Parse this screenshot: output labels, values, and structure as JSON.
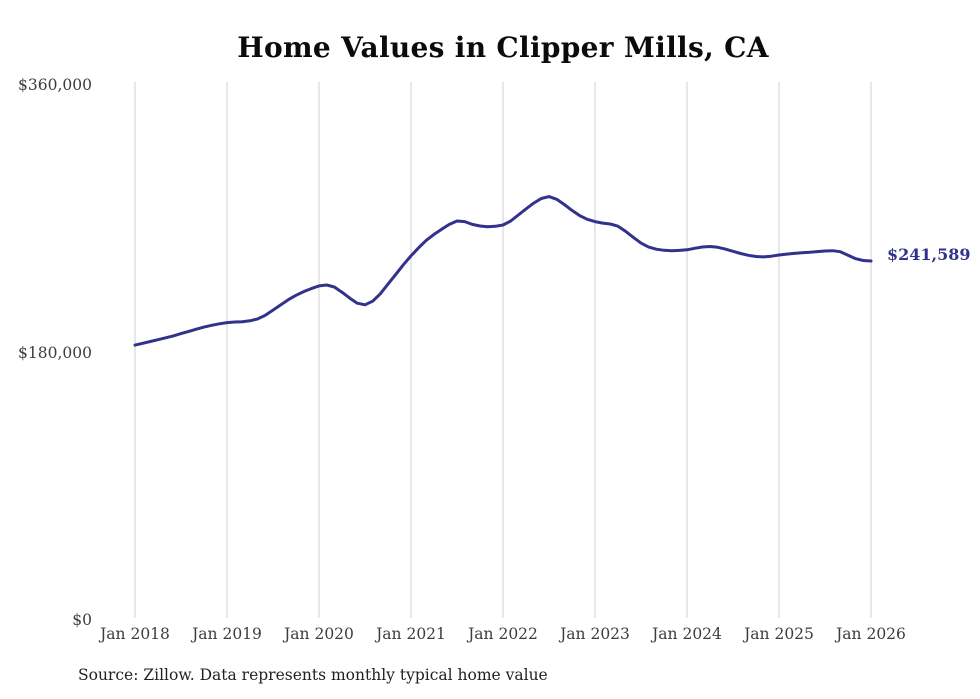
{
  "page": {
    "background": "#ffffff"
  },
  "chart": {
    "title": "Home Values in Clipper Mills, CA",
    "end_label": "$241,589",
    "source_note": "Source: Zillow. Data represents monthly typical home value",
    "line_color": "#32328c",
    "grid_color": "#cfcfcf",
    "title_color": "#0b0b0b",
    "axis_label_color": "#3d3d3d"
  },
  "chart_data": {
    "type": "line",
    "title": "Home Values in Clipper Mills, CA",
    "ylabel": "",
    "xlabel": "",
    "ylim": [
      0,
      360000
    ],
    "grid": "vertical-only",
    "legend": "none",
    "y_tick_values": [
      360000,
      180000,
      0
    ],
    "y_tick_labels": [
      "$360,000",
      "$180,000",
      "$0"
    ],
    "x_tick_labels": [
      "Jan 2018",
      "Jan 2019",
      "Jan 2020",
      "Jan 2021",
      "Jan 2022",
      "Jan 2023",
      "Jan 2024",
      "Jan 2025",
      "Jan 2026"
    ],
    "frequency": "monthly",
    "last_value": 241589,
    "annotation": "$241,589",
    "x": [
      "2018-01",
      "2018-02",
      "2018-03",
      "2018-04",
      "2018-05",
      "2018-06",
      "2018-07",
      "2018-08",
      "2018-09",
      "2018-10",
      "2018-11",
      "2018-12",
      "2019-01",
      "2019-02",
      "2019-03",
      "2019-04",
      "2019-05",
      "2019-06",
      "2019-07",
      "2019-08",
      "2019-09",
      "2019-10",
      "2019-11",
      "2019-12",
      "2020-01",
      "2020-02",
      "2020-03",
      "2020-04",
      "2020-05",
      "2020-06",
      "2020-07",
      "2020-08",
      "2020-09",
      "2020-10",
      "2020-11",
      "2020-12",
      "2021-01",
      "2021-02",
      "2021-03",
      "2021-04",
      "2021-05",
      "2021-06",
      "2021-07",
      "2021-08",
      "2021-09",
      "2021-10",
      "2021-11",
      "2021-12",
      "2022-01",
      "2022-02",
      "2022-03",
      "2022-04",
      "2022-05",
      "2022-06",
      "2022-07",
      "2022-08",
      "2022-09",
      "2022-10",
      "2022-11",
      "2022-12",
      "2023-01",
      "2023-02",
      "2023-03",
      "2023-04",
      "2023-05",
      "2023-06",
      "2023-07",
      "2023-08",
      "2023-09",
      "2023-10",
      "2023-11",
      "2023-12",
      "2024-01",
      "2024-02",
      "2024-03",
      "2024-04",
      "2024-05",
      "2024-06",
      "2024-07",
      "2024-08",
      "2024-09",
      "2024-10",
      "2024-11",
      "2024-12",
      "2025-01",
      "2025-02",
      "2025-03",
      "2025-04",
      "2025-05",
      "2025-06",
      "2025-07",
      "2025-08",
      "2025-09",
      "2025-10",
      "2025-11",
      "2025-12",
      "2026-01"
    ],
    "values": [
      185000,
      186200,
      187400,
      188600,
      189900,
      191200,
      192700,
      194200,
      195700,
      197100,
      198300,
      199300,
      200100,
      200500,
      200700,
      201300,
      202600,
      205000,
      208500,
      212000,
      215500,
      218500,
      221000,
      223000,
      224800,
      225400,
      224100,
      220600,
      216600,
      213200,
      212100,
      214500,
      219500,
      226000,
      232500,
      239000,
      245000,
      250500,
      255500,
      259500,
      263000,
      266200,
      268500,
      268100,
      266200,
      265100,
      264600,
      264900,
      265800,
      268500,
      272500,
      276600,
      280500,
      283600,
      284900,
      283100,
      279600,
      275600,
      272100,
      269600,
      268100,
      267100,
      266500,
      265000,
      261500,
      257500,
      253600,
      250900,
      249500,
      248800,
      248500,
      248700,
      249100,
      250100,
      251000,
      251300,
      250800,
      249600,
      248100,
      246600,
      245400,
      244600,
      244300,
      244800,
      245600,
      246200,
      246700,
      247100,
      247400,
      247900,
      248300,
      248500,
      247800,
      245500,
      243100,
      241900,
      241589
    ]
  }
}
